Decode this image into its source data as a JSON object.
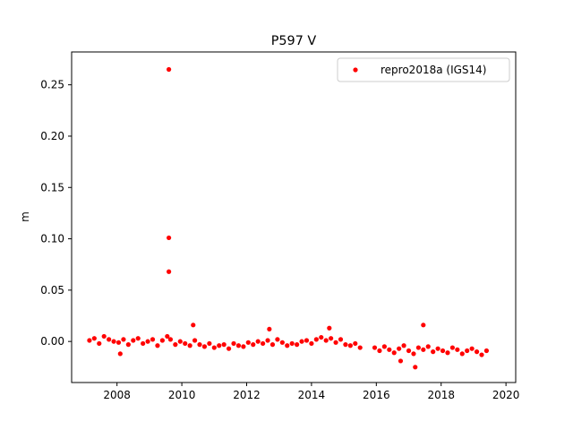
{
  "chart_data": {
    "type": "scatter",
    "title": "P597 V",
    "xlabel": "",
    "ylabel": "m",
    "xlim": [
      2006.6,
      2020.3
    ],
    "ylim": [
      -0.04,
      0.282
    ],
    "x_ticks": [
      2008,
      2010,
      2012,
      2014,
      2016,
      2018,
      2020
    ],
    "x_tick_labels": [
      "2008",
      "2010",
      "2012",
      "2014",
      "2016",
      "2018",
      "2020"
    ],
    "y_ticks": [
      0.0,
      0.05,
      0.1,
      0.15,
      0.2,
      0.25
    ],
    "y_tick_labels": [
      "0.00",
      "0.05",
      "0.10",
      "0.15",
      "0.20",
      "0.25"
    ],
    "grid": false,
    "legend_position": "top-right",
    "series": [
      {
        "name": "repro2018a (IGS14)",
        "color": "#ff0000",
        "marker": "circle",
        "x": [
          2007.15,
          2007.3,
          2007.45,
          2007.6,
          2007.75,
          2007.9,
          2008.05,
          2008.2,
          2008.35,
          2008.5,
          2008.65,
          2008.8,
          2008.95,
          2009.1,
          2009.25,
          2009.4,
          2009.55,
          2009.65,
          2009.8,
          2009.95,
          2010.1,
          2010.25,
          2010.4,
          2010.55,
          2010.7,
          2010.85,
          2011.0,
          2011.15,
          2011.3,
          2011.45,
          2011.6,
          2011.75,
          2011.9,
          2012.05,
          2012.2,
          2012.35,
          2012.5,
          2012.65,
          2012.8,
          2012.95,
          2013.1,
          2013.25,
          2013.4,
          2013.55,
          2013.7,
          2013.85,
          2014.0,
          2014.15,
          2014.3,
          2014.45,
          2014.6,
          2014.75,
          2014.9,
          2015.05,
          2015.2,
          2015.35,
          2015.5,
          2015.95,
          2016.1,
          2016.25,
          2016.4,
          2016.55,
          2016.7,
          2016.85,
          2017.0,
          2017.15,
          2017.3,
          2017.45,
          2017.6,
          2017.75,
          2017.9,
          2018.05,
          2018.2,
          2018.35,
          2018.5,
          2018.65,
          2018.8,
          2018.95,
          2019.1,
          2019.25,
          2019.4,
          2009.6,
          2009.6,
          2009.6,
          2010.35,
          2017.45,
          2012.7,
          2014.55,
          2008.1,
          2016.75,
          2017.2
        ],
        "y": [
          0.001,
          0.003,
          -0.002,
          0.005,
          0.002,
          0.0,
          -0.001,
          0.002,
          -0.003,
          0.001,
          0.003,
          -0.002,
          0.0,
          0.002,
          -0.004,
          0.001,
          0.005,
          0.002,
          -0.003,
          0.0,
          -0.002,
          -0.004,
          0.001,
          -0.003,
          -0.005,
          -0.002,
          -0.006,
          -0.004,
          -0.003,
          -0.007,
          -0.002,
          -0.004,
          -0.005,
          -0.001,
          -0.003,
          0.0,
          -0.002,
          0.001,
          -0.003,
          0.002,
          -0.001,
          -0.004,
          -0.002,
          -0.003,
          0.0,
          0.001,
          -0.002,
          0.002,
          0.004,
          0.001,
          0.003,
          -0.001,
          0.002,
          -0.003,
          -0.004,
          -0.002,
          -0.006,
          -0.006,
          -0.009,
          -0.005,
          -0.008,
          -0.011,
          -0.007,
          -0.004,
          -0.009,
          -0.012,
          -0.006,
          -0.008,
          -0.005,
          -0.01,
          -0.007,
          -0.009,
          -0.011,
          -0.006,
          -0.008,
          -0.012,
          -0.009,
          -0.007,
          -0.01,
          -0.013,
          -0.009,
          0.265,
          0.101,
          0.068,
          0.016,
          0.016,
          0.012,
          0.013,
          -0.012,
          -0.019,
          -0.025
        ]
      }
    ]
  }
}
